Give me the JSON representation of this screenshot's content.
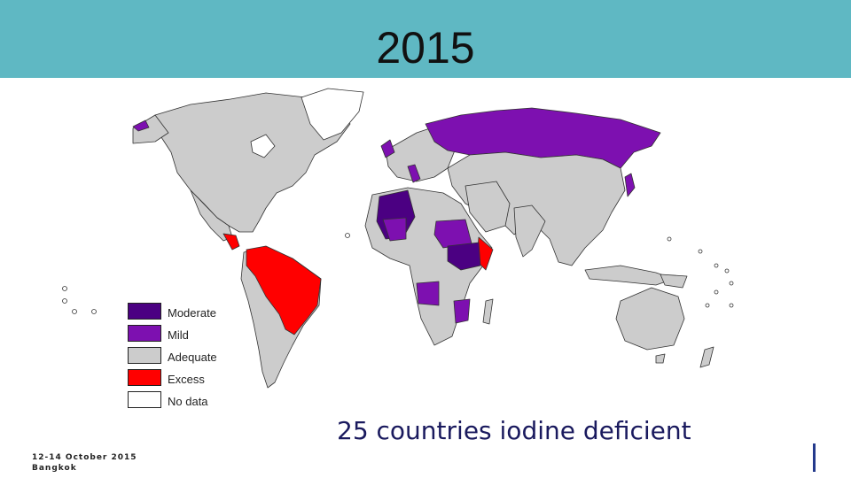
{
  "title": "2015",
  "legend": [
    {
      "label": "Moderate",
      "color": "#4b0082"
    },
    {
      "label": "Mild",
      "color": "#7d10b0"
    },
    {
      "label": "Adequate",
      "color": "#cccccc"
    },
    {
      "label": "Excess",
      "color": "#ff0000"
    },
    {
      "label": "No data",
      "color": "#ffffff"
    }
  ],
  "caption": "25 countries iodine deficient",
  "footer": {
    "date": "12-14 October 2015",
    "place": "Bangkok"
  },
  "colors": {
    "header": "#5fb8c3",
    "ocean": "#ffffff",
    "border": "#333333",
    "accent_bar": "#243a8c"
  }
}
